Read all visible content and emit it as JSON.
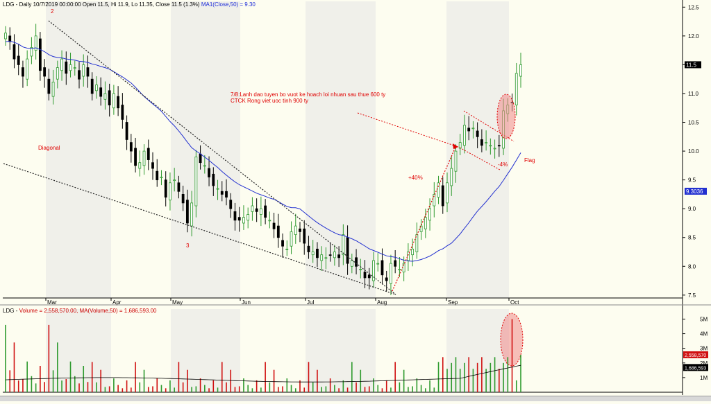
{
  "header": {
    "symbol": "LDG",
    "info": "Daily 10/7/2019 00:00:00 Open 11.5, Hi 11.9, Lo 11.35, Close 11.5 (1.3%)",
    "ma_label": "MA1(Close,50) = 9.30"
  },
  "volume_header": {
    "symbol": "LDG",
    "info": "Volume = 2,558,570.00, MA(Volume,50) = 1,686,593.00"
  },
  "annotations": {
    "wave_2": "2",
    "wave_3": "3",
    "diagonal": "Diagonal",
    "news_line1": "7/8:Lanh dao tuyen bo vuot ke hoach loi nhuan sau thue 600 ty",
    "news_line2": "CTCK Rong viet uoc tinh 900 ty",
    "gain": "+40%",
    "drop": "-4%",
    "flag": "Flag"
  },
  "colors": {
    "up": "#2e9a2e",
    "down": "#000000",
    "ma_line": "#2230d0",
    "vol_up": "#2e9a2e",
    "vol_down": "#d01010",
    "vol_ma": "#000000",
    "annotation": "#e00000",
    "highlight": "#f08a8a"
  },
  "chart_data": [
    {
      "type": "candlestick",
      "title": "LDG - Daily",
      "x_ticks": [
        "Mar",
        "Apr",
        "May",
        "Jun",
        "Jul",
        "Aug",
        "Sep",
        "Oct"
      ],
      "y_ticks": [
        7.5,
        8.0,
        8.5,
        9.0,
        9.5,
        10.0,
        10.5,
        11.0,
        11.5,
        12.0,
        12.5
      ],
      "ylim": [
        7.45,
        12.6
      ],
      "price_label": "11.5",
      "ma_value_label": "9.3036",
      "series": [
        {
          "name": "LDG",
          "ohlc_close": [
            12.05,
            11.9,
            11.6,
            11.5,
            11.3,
            11.6,
            11.8,
            12.0,
            11.4,
            11.3,
            11.0,
            11.2,
            11.45,
            11.6,
            11.35,
            11.5,
            11.45,
            11.25,
            11.5,
            11.3,
            11.0,
            11.15,
            10.95,
            11.0,
            10.8,
            11.0,
            10.75,
            10.55,
            10.2,
            10.0,
            9.75,
            9.8,
            10.0,
            9.85,
            9.7,
            9.5,
            9.55,
            9.2,
            9.45,
            9.5,
            9.3,
            9.1,
            8.75,
            9.1,
            9.9,
            9.8,
            9.75,
            9.55,
            9.4,
            9.35,
            9.25,
            9.2,
            9.0,
            8.8,
            8.8,
            8.85,
            8.9,
            9.05,
            8.95,
            9.0,
            8.85,
            8.8,
            8.65,
            8.5,
            8.35,
            8.3,
            8.6,
            8.7,
            8.6,
            8.4,
            8.25,
            8.25,
            8.15,
            8.2,
            8.15,
            8.2,
            8.25,
            8.15,
            8.55,
            8.05,
            8.1,
            8.0,
            7.95,
            7.8,
            7.8,
            8.1,
            8.05,
            7.85,
            7.75,
            8.05,
            8.0,
            7.95,
            8.05,
            8.25,
            8.3,
            8.55,
            8.7,
            8.85,
            9.0,
            9.25,
            9.45,
            9.05,
            9.45,
            9.7,
            10.0,
            10.15,
            10.45,
            10.35,
            10.4,
            10.25,
            10.1,
            10.15,
            10.1,
            10.05,
            10.1,
            10.7,
            10.8,
            10.85,
            11.35,
            11.5
          ]
        },
        {
          "name": "MA1(Close,50)",
          "values_start": 11.9,
          "values_end": 9.3036
        }
      ]
    },
    {
      "type": "bar",
      "title": "LDG - Volume",
      "y_ticks": [
        "1M",
        "2M",
        "3M",
        "4M",
        "5M"
      ],
      "volume_label": "2,558,570",
      "ma_label": "1,686,593",
      "series": [
        {
          "name": "Volume",
          "last_value": 2558570
        },
        {
          "name": "MA(Volume,50)",
          "last_value": 1686593
        }
      ]
    }
  ]
}
